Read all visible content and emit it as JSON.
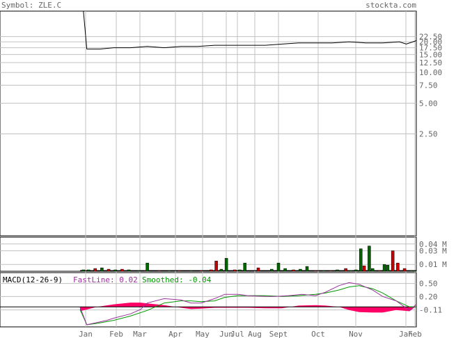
{
  "header": {
    "symbol_label": "Symbol: ZLE.C",
    "site": "stockta.com"
  },
  "months": [
    "Jan",
    "Feb",
    "Mar",
    "Apr",
    "May",
    "Jun",
    "Jul",
    "Aug",
    "Sept",
    "Oct",
    "Nov",
    "Jan",
    "Feb"
  ],
  "colors": {
    "price_line": "#000000",
    "grid": "#c0c0c0",
    "volume_up": "#006600",
    "volume_down": "#cc0000",
    "fastline": "#993399",
    "smoothed": "#009900",
    "histogram": "#ff0066"
  },
  "chart_data": [
    {
      "type": "line",
      "panel": "price",
      "scale": "log",
      "y_ticks": [
        "22.50",
        "20.00",
        "17.50",
        "15.00",
        "12.50",
        "10.00",
        "7.50",
        "5.00",
        "2.50"
      ],
      "y_tick_values": [
        22.5,
        20,
        17.5,
        15,
        12.5,
        10,
        7.5,
        5,
        2.5
      ],
      "ylim": [
        0.25,
        40
      ],
      "grid": true,
      "x": [
        0.0,
        0.01,
        0.02,
        0.06,
        0.1,
        0.15,
        0.2,
        0.25,
        0.3,
        0.35,
        0.4,
        0.45,
        0.5,
        0.55,
        0.6,
        0.65,
        0.7,
        0.75,
        0.8,
        0.85,
        0.9,
        0.95,
        0.97,
        1.0
      ],
      "values": [
        40,
        40,
        17,
        17,
        17.5,
        17.5,
        18,
        17.5,
        18,
        18,
        18.5,
        18.5,
        18.5,
        18.5,
        19,
        19.5,
        19.5,
        19.5,
        20,
        19.5,
        19.5,
        20,
        19,
        20.5
      ]
    },
    {
      "type": "bar",
      "panel": "volume",
      "y_ticks": [
        "0.04 M",
        "0.03 M",
        "0.01 M"
      ],
      "ylim": [
        0,
        0.05
      ],
      "unit": "M",
      "bars": [
        {
          "x": 0.01,
          "v": 0.002,
          "up": true
        },
        {
          "x": 0.025,
          "v": 0.002,
          "up": true
        },
        {
          "x": 0.045,
          "v": 0.004,
          "up": false
        },
        {
          "x": 0.065,
          "v": 0.005,
          "up": true
        },
        {
          "x": 0.085,
          "v": 0.003,
          "up": false
        },
        {
          "x": 0.105,
          "v": 0.002,
          "up": true
        },
        {
          "x": 0.125,
          "v": 0.003,
          "up": false
        },
        {
          "x": 0.145,
          "v": 0.002,
          "up": true
        },
        {
          "x": 0.175,
          "v": 0.001,
          "up": true
        },
        {
          "x": 0.195,
          "v": 0.001,
          "up": false
        },
        {
          "x": 0.2,
          "v": 0.012,
          "up": true
        },
        {
          "x": 0.235,
          "v": 0.001,
          "up": false
        },
        {
          "x": 0.265,
          "v": 0.001,
          "up": true
        },
        {
          "x": 0.295,
          "v": 0.001,
          "up": false
        },
        {
          "x": 0.33,
          "v": 0.001,
          "up": true
        },
        {
          "x": 0.36,
          "v": 0.001,
          "up": false
        },
        {
          "x": 0.39,
          "v": 0.002,
          "up": false
        },
        {
          "x": 0.405,
          "v": 0.015,
          "up": false
        },
        {
          "x": 0.42,
          "v": 0.003,
          "up": true
        },
        {
          "x": 0.435,
          "v": 0.019,
          "up": true
        },
        {
          "x": 0.46,
          "v": 0.002,
          "up": false
        },
        {
          "x": 0.475,
          "v": 0.002,
          "up": true
        },
        {
          "x": 0.49,
          "v": 0.012,
          "up": true
        },
        {
          "x": 0.53,
          "v": 0.005,
          "up": false
        },
        {
          "x": 0.57,
          "v": 0.003,
          "up": true
        },
        {
          "x": 0.59,
          "v": 0.012,
          "up": true
        },
        {
          "x": 0.61,
          "v": 0.004,
          "up": true
        },
        {
          "x": 0.635,
          "v": 0.002,
          "up": false
        },
        {
          "x": 0.655,
          "v": 0.003,
          "up": true
        },
        {
          "x": 0.675,
          "v": 0.007,
          "up": true
        },
        {
          "x": 0.7,
          "v": 0.001,
          "up": false
        },
        {
          "x": 0.725,
          "v": 0.001,
          "up": true
        },
        {
          "x": 0.745,
          "v": 0.001,
          "up": false
        },
        {
          "x": 0.765,
          "v": 0.002,
          "up": true
        },
        {
          "x": 0.79,
          "v": 0.004,
          "up": false
        },
        {
          "x": 0.805,
          "v": 0.001,
          "up": true
        },
        {
          "x": 0.82,
          "v": 0.002,
          "up": true
        },
        {
          "x": 0.835,
          "v": 0.033,
          "up": true
        },
        {
          "x": 0.845,
          "v": 0.008,
          "up": false
        },
        {
          "x": 0.86,
          "v": 0.037,
          "up": true
        },
        {
          "x": 0.87,
          "v": 0.004,
          "up": true
        },
        {
          "x": 0.89,
          "v": 0.001,
          "up": false
        },
        {
          "x": 0.905,
          "v": 0.01,
          "up": true
        },
        {
          "x": 0.915,
          "v": 0.009,
          "up": true
        },
        {
          "x": 0.93,
          "v": 0.03,
          "up": false
        },
        {
          "x": 0.945,
          "v": 0.012,
          "up": false
        },
        {
          "x": 0.965,
          "v": 0.004,
          "up": false
        },
        {
          "x": 0.985,
          "v": 0.001,
          "up": true
        },
        {
          "x": 0.995,
          "v": 0.001,
          "up": true
        }
      ]
    },
    {
      "type": "line",
      "panel": "macd",
      "title": "MACD(12-26-9)",
      "fastline_label": "FastLine: 0.02",
      "smoothed_label": "Smoothed: -0.04",
      "y_ticks": [
        "0.50",
        "0.20",
        "-0.11"
      ],
      "y_tick_values": [
        0.5,
        0.2,
        -0.11
      ],
      "ylim": [
        -0.5,
        0.75
      ],
      "zero_line": -0.04,
      "series": [
        {
          "name": "FastLine",
          "x": [
            0.0,
            0.02,
            0.05,
            0.08,
            0.1,
            0.15,
            0.18,
            0.2,
            0.25,
            0.3,
            0.33,
            0.36,
            0.4,
            0.43,
            0.47,
            0.5,
            0.55,
            0.58,
            0.62,
            0.66,
            0.7,
            0.73,
            0.77,
            0.8,
            0.83,
            0.87,
            0.9,
            0.94,
            0.98,
            1.0
          ],
          "values": [
            -0.05,
            -0.45,
            -0.4,
            -0.35,
            -0.3,
            -0.2,
            -0.1,
            0.05,
            0.15,
            0.12,
            0.05,
            0.05,
            0.15,
            0.25,
            0.25,
            0.22,
            0.2,
            0.2,
            0.22,
            0.25,
            0.22,
            0.3,
            0.45,
            0.52,
            0.48,
            0.35,
            0.2,
            0.1,
            -0.12,
            0.02
          ]
        },
        {
          "name": "Smoothed",
          "x": [
            0.0,
            0.02,
            0.05,
            0.1,
            0.15,
            0.2,
            0.25,
            0.3,
            0.33,
            0.36,
            0.4,
            0.43,
            0.47,
            0.5,
            0.55,
            0.6,
            0.65,
            0.7,
            0.73,
            0.77,
            0.8,
            0.83,
            0.87,
            0.9,
            0.94,
            0.98,
            1.0
          ],
          "values": [
            -0.1,
            -0.45,
            -0.42,
            -0.35,
            -0.25,
            -0.12,
            0.05,
            0.1,
            0.1,
            0.08,
            0.1,
            0.18,
            0.22,
            0.22,
            0.22,
            0.2,
            0.22,
            0.25,
            0.28,
            0.35,
            0.42,
            0.45,
            0.38,
            0.28,
            0.1,
            -0.04,
            -0.04
          ]
        },
        {
          "name": "Histogram",
          "x": [
            0.0,
            0.05,
            0.1,
            0.15,
            0.18,
            0.2,
            0.25,
            0.3,
            0.33,
            0.36,
            0.4,
            0.43,
            0.47,
            0.5,
            0.55,
            0.6,
            0.65,
            0.7,
            0.73,
            0.77,
            0.8,
            0.83,
            0.87,
            0.9,
            0.94,
            0.98,
            1.0
          ],
          "values": [
            -0.1,
            0.0,
            0.06,
            0.1,
            0.1,
            0.08,
            0.04,
            -0.02,
            -0.05,
            -0.04,
            -0.02,
            -0.02,
            -0.02,
            -0.02,
            -0.03,
            -0.03,
            0.03,
            0.04,
            0.03,
            0.0,
            -0.07,
            -0.12,
            -0.13,
            -0.13,
            -0.07,
            -0.1,
            0.02
          ]
        }
      ]
    }
  ]
}
